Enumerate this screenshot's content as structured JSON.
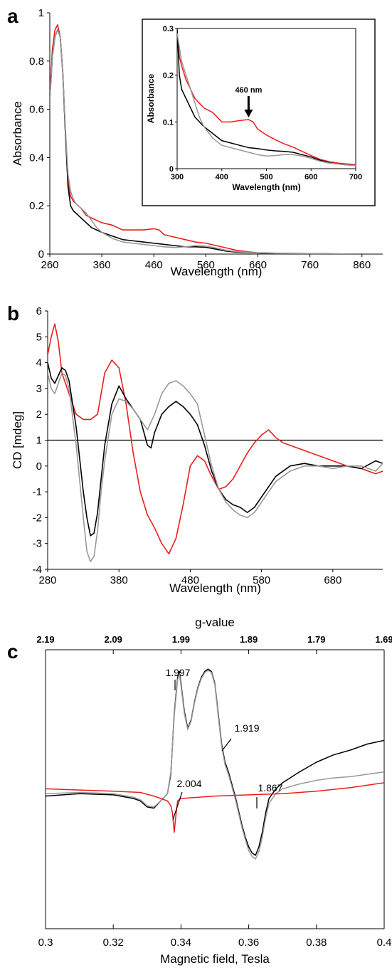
{
  "colors": {
    "red": "#ee1c1c",
    "black": "#000000",
    "gray": "#999999"
  },
  "chart_data": [
    {
      "panel": "a",
      "type": "line",
      "xlabel": "Wavelength (nm)",
      "ylabel": "Absorbance",
      "xlim": [
        260,
        900
      ],
      "ylim": [
        0,
        1
      ],
      "xticks": [
        260,
        360,
        460,
        560,
        660,
        760,
        860
      ],
      "yticks": [
        0,
        0.2,
        0.4,
        0.6,
        0.8,
        1
      ],
      "series": [
        {
          "color": "red",
          "x": [
            260,
            265,
            270,
            275,
            280,
            285,
            290,
            295,
            300,
            305,
            310,
            320,
            330,
            340,
            350,
            360,
            380,
            400,
            420,
            440,
            460,
            470,
            480,
            500,
            520,
            540,
            560,
            580,
            600,
            620,
            640,
            660,
            700,
            760,
            800,
            860,
            900
          ],
          "y": [
            0.66,
            0.85,
            0.93,
            0.95,
            0.9,
            0.75,
            0.5,
            0.3,
            0.24,
            0.22,
            0.21,
            0.19,
            0.16,
            0.15,
            0.14,
            0.13,
            0.12,
            0.1,
            0.1,
            0.1,
            0.105,
            0.1,
            0.08,
            0.07,
            0.06,
            0.05,
            0.045,
            0.035,
            0.025,
            0.015,
            0.01,
            0.005,
            0.003,
            0.002,
            0.001,
            0,
            0
          ]
        },
        {
          "color": "black",
          "x": [
            260,
            265,
            270,
            275,
            280,
            285,
            290,
            295,
            300,
            305,
            310,
            320,
            330,
            340,
            350,
            360,
            380,
            400,
            420,
            440,
            460,
            480,
            500,
            520,
            540,
            560,
            580,
            600,
            620,
            660,
            700,
            760,
            800,
            860,
            900
          ],
          "y": [
            0.64,
            0.82,
            0.9,
            0.93,
            0.9,
            0.75,
            0.5,
            0.28,
            0.2,
            0.18,
            0.17,
            0.15,
            0.13,
            0.11,
            0.1,
            0.09,
            0.075,
            0.06,
            0.055,
            0.05,
            0.045,
            0.04,
            0.035,
            0.03,
            0.03,
            0.028,
            0.02,
            0.012,
            0.008,
            0.005,
            0.003,
            0.002,
            0.001,
            0,
            0
          ]
        },
        {
          "color": "gray",
          "x": [
            260,
            265,
            270,
            275,
            280,
            285,
            290,
            295,
            300,
            305,
            310,
            320,
            330,
            340,
            350,
            360,
            380,
            400,
            420,
            440,
            460,
            480,
            500,
            520,
            540,
            560,
            580,
            600,
            620,
            660,
            700,
            760,
            800,
            860,
            900
          ],
          "y": [
            0.64,
            0.82,
            0.9,
            0.93,
            0.9,
            0.75,
            0.52,
            0.33,
            0.26,
            0.23,
            0.21,
            0.19,
            0.17,
            0.14,
            0.11,
            0.09,
            0.065,
            0.05,
            0.045,
            0.04,
            0.035,
            0.03,
            0.027,
            0.03,
            0.035,
            0.033,
            0.025,
            0.015,
            0.01,
            0.005,
            0.003,
            0.002,
            0.001,
            0,
            0
          ]
        }
      ],
      "inset": {
        "xlabel": "Wavelength (nm)",
        "ylabel": "Absorbance",
        "xlim": [
          300,
          700
        ],
        "ylim": [
          0,
          0.3
        ],
        "xticks": [
          300,
          400,
          500,
          600,
          700
        ],
        "yticks": [
          0,
          0.1,
          0.2,
          0.3
        ],
        "annotation": {
          "text": "460 nm",
          "x": 460,
          "y": 0.105
        },
        "series": [
          {
            "color": "red",
            "x": [
              300,
              305,
              310,
              320,
              330,
              340,
              350,
              360,
              380,
              400,
              420,
              440,
              460,
              470,
              480,
              500,
              520,
              540,
              560,
              580,
              600,
              620,
              640,
              660,
              680,
              700
            ],
            "y": [
              0.29,
              0.24,
              0.22,
              0.19,
              0.17,
              0.15,
              0.14,
              0.13,
              0.12,
              0.1,
              0.1,
              0.103,
              0.105,
              0.1,
              0.085,
              0.072,
              0.062,
              0.053,
              0.046,
              0.037,
              0.028,
              0.02,
              0.015,
              0.012,
              0.01,
              0.009
            ]
          },
          {
            "color": "black",
            "x": [
              300,
              305,
              310,
              320,
              330,
              340,
              350,
              360,
              380,
              400,
              420,
              440,
              460,
              480,
              500,
              520,
              540,
              560,
              580,
              600,
              620,
              640,
              660,
              680,
              700
            ],
            "y": [
              0.3,
              0.2,
              0.17,
              0.15,
              0.13,
              0.11,
              0.1,
              0.09,
              0.075,
              0.06,
              0.055,
              0.05,
              0.045,
              0.043,
              0.04,
              0.038,
              0.037,
              0.035,
              0.03,
              0.025,
              0.018,
              0.013,
              0.01,
              0.008,
              0.007
            ]
          },
          {
            "color": "gray",
            "x": [
              300,
              305,
              310,
              320,
              330,
              340,
              350,
              360,
              380,
              400,
              420,
              440,
              460,
              480,
              500,
              520,
              540,
              560,
              580,
              600,
              620,
              640,
              660,
              680,
              700
            ],
            "y": [
              0.29,
              0.26,
              0.23,
              0.2,
              0.17,
              0.14,
              0.11,
              0.09,
              0.065,
              0.05,
              0.045,
              0.04,
              0.035,
              0.03,
              0.027,
              0.028,
              0.03,
              0.03,
              0.027,
              0.022,
              0.016,
              0.012,
              0.01,
              0.008,
              0.007
            ]
          }
        ]
      }
    },
    {
      "panel": "b",
      "type": "line",
      "xlabel": "Wavelength (nm)",
      "ylabel": "CD [mdeg]",
      "xlim": [
        280,
        750
      ],
      "ylim": [
        -4,
        6
      ],
      "xticks": [
        280,
        380,
        480,
        580,
        680
      ],
      "yticks": [
        -4,
        -3,
        -2,
        -1,
        0,
        1,
        2,
        3,
        4,
        5,
        6
      ],
      "reference_line": 1,
      "series": [
        {
          "color": "red",
          "x": [
            280,
            285,
            290,
            295,
            300,
            310,
            320,
            330,
            340,
            350,
            360,
            370,
            380,
            390,
            400,
            410,
            420,
            430,
            440,
            450,
            460,
            470,
            480,
            490,
            500,
            510,
            520,
            530,
            540,
            550,
            560,
            570,
            580,
            590,
            600,
            610,
            620,
            640,
            660,
            680,
            700,
            720,
            740,
            750
          ],
          "y": [
            4.3,
            5.0,
            5.5,
            4.8,
            3.6,
            2.8,
            2.0,
            1.8,
            1.8,
            2.0,
            3.6,
            4.1,
            3.8,
            2.4,
            0.5,
            -1.0,
            -1.9,
            -2.4,
            -3.0,
            -3.4,
            -2.8,
            -1.5,
            0.0,
            0.4,
            0.2,
            -0.4,
            -0.9,
            -0.8,
            -0.5,
            0.0,
            0.5,
            0.9,
            1.2,
            1.4,
            1.1,
            0.9,
            0.8,
            0.6,
            0.4,
            0.2,
            0.0,
            -0.1,
            -0.3,
            -0.2
          ]
        },
        {
          "color": "black",
          "x": [
            280,
            285,
            290,
            295,
            300,
            305,
            310,
            320,
            330,
            335,
            340,
            345,
            350,
            355,
            360,
            370,
            380,
            390,
            400,
            410,
            420,
            425,
            430,
            440,
            450,
            460,
            470,
            480,
            490,
            500,
            510,
            520,
            530,
            540,
            550,
            560,
            570,
            580,
            590,
            600,
            620,
            640,
            660,
            680,
            700,
            720,
            740,
            750
          ],
          "y": [
            4.0,
            3.4,
            3.2,
            3.5,
            3.8,
            3.7,
            3.3,
            1.5,
            -1.0,
            -2.0,
            -2.7,
            -2.6,
            -1.8,
            -0.5,
            0.8,
            2.4,
            3.1,
            2.6,
            2.2,
            1.8,
            0.8,
            0.7,
            1.3,
            2.0,
            2.3,
            2.5,
            2.3,
            2.0,
            1.6,
            0.8,
            -0.2,
            -0.9,
            -1.3,
            -1.5,
            -1.6,
            -1.8,
            -1.6,
            -1.2,
            -0.8,
            -0.4,
            0.0,
            0.1,
            0.0,
            0.0,
            0.0,
            -0.1,
            0.2,
            0.1
          ]
        },
        {
          "color": "gray",
          "x": [
            280,
            285,
            290,
            295,
            300,
            305,
            310,
            320,
            330,
            335,
            340,
            345,
            350,
            355,
            360,
            370,
            380,
            390,
            400,
            410,
            420,
            430,
            440,
            450,
            460,
            470,
            480,
            490,
            500,
            510,
            520,
            530,
            540,
            550,
            560,
            570,
            580,
            590,
            600,
            620,
            640,
            660,
            680,
            700,
            720,
            740,
            750
          ],
          "y": [
            3.6,
            3.0,
            2.8,
            3.2,
            3.6,
            3.5,
            3.0,
            0.8,
            -2.0,
            -3.3,
            -3.7,
            -3.5,
            -2.5,
            -1.0,
            0.2,
            2.0,
            2.6,
            2.5,
            2.2,
            1.8,
            1.4,
            2.0,
            2.8,
            3.2,
            3.3,
            3.1,
            2.8,
            2.4,
            1.2,
            0.0,
            -0.9,
            -1.4,
            -1.7,
            -1.9,
            -2.0,
            -1.8,
            -1.4,
            -1.0,
            -0.6,
            -0.2,
            0.0,
            0.0,
            -0.1,
            0.0,
            0.0,
            -0.2,
            0.1
          ]
        }
      ]
    },
    {
      "panel": "c",
      "type": "line",
      "xlabel": "Magnetic field, Tesla",
      "top_axis_label": "g-value",
      "xlim": [
        0.3,
        0.4
      ],
      "xticks": [
        0.3,
        0.32,
        0.34,
        0.36,
        0.38,
        0.4
      ],
      "xtick_labels": [
        "0.3",
        "0.32",
        "0.34",
        "0.36",
        "0.38",
        "0.4"
      ],
      "top_tick_labels": [
        "2.19",
        "2.09",
        "1.99",
        "1.89",
        "1.79",
        "1.69"
      ],
      "ylim": [
        -1,
        1
      ],
      "annotations": [
        "1.997",
        "1.919",
        "2.004",
        "1.867"
      ],
      "series": [
        {
          "color": "red",
          "x": [
            0.3,
            0.31,
            0.32,
            0.328,
            0.332,
            0.334,
            0.336,
            0.337,
            0.3375,
            0.338,
            0.3385,
            0.339,
            0.34,
            0.35,
            0.36,
            0.37,
            0.38,
            0.39,
            0.4
          ],
          "y": [
            -0.02,
            -0.03,
            -0.04,
            -0.05,
            -0.08,
            -0.1,
            -0.12,
            -0.16,
            -0.22,
            -0.38,
            -0.24,
            -0.12,
            -0.1,
            -0.08,
            -0.07,
            -0.06,
            -0.04,
            -0.01,
            0.03
          ]
        },
        {
          "color": "black",
          "x": [
            0.3,
            0.31,
            0.32,
            0.326,
            0.328,
            0.33,
            0.332,
            0.334,
            0.336,
            0.337,
            0.338,
            0.339,
            0.3395,
            0.34,
            0.341,
            0.342,
            0.343,
            0.344,
            0.345,
            0.346,
            0.347,
            0.348,
            0.349,
            0.35,
            0.351,
            0.352,
            0.353,
            0.354,
            0.355,
            0.356,
            0.357,
            0.358,
            0.359,
            0.36,
            0.361,
            0.362,
            0.363,
            0.364,
            0.365,
            0.366,
            0.368,
            0.37,
            0.375,
            0.38,
            0.385,
            0.39,
            0.395,
            0.4
          ],
          "y": [
            -0.08,
            -0.06,
            -0.07,
            -0.1,
            -0.12,
            -0.17,
            -0.18,
            -0.12,
            -0.06,
            0.1,
            0.6,
            0.9,
            0.95,
            0.85,
            0.62,
            0.48,
            0.55,
            0.7,
            0.82,
            0.9,
            0.95,
            0.97,
            0.95,
            0.85,
            0.6,
            0.35,
            0.2,
            0.12,
            0.02,
            -0.08,
            -0.2,
            -0.32,
            -0.42,
            -0.5,
            -0.55,
            -0.57,
            -0.5,
            -0.38,
            -0.22,
            -0.1,
            -0.02,
            0.03,
            0.12,
            0.2,
            0.26,
            0.3,
            0.35,
            0.38
          ]
        },
        {
          "color": "gray",
          "x": [
            0.3,
            0.31,
            0.32,
            0.326,
            0.328,
            0.33,
            0.332,
            0.334,
            0.336,
            0.337,
            0.338,
            0.339,
            0.3395,
            0.34,
            0.341,
            0.342,
            0.343,
            0.344,
            0.345,
            0.346,
            0.347,
            0.348,
            0.349,
            0.35,
            0.351,
            0.352,
            0.353,
            0.354,
            0.355,
            0.356,
            0.357,
            0.358,
            0.359,
            0.36,
            0.361,
            0.362,
            0.363,
            0.364,
            0.365,
            0.366,
            0.368,
            0.37,
            0.375,
            0.38,
            0.385,
            0.39,
            0.395,
            0.4
          ],
          "y": [
            -0.06,
            -0.05,
            -0.06,
            -0.09,
            -0.11,
            -0.16,
            -0.17,
            -0.12,
            -0.06,
            0.12,
            0.58,
            0.88,
            0.93,
            0.83,
            0.6,
            0.47,
            0.54,
            0.69,
            0.81,
            0.89,
            0.94,
            0.96,
            0.94,
            0.84,
            0.58,
            0.33,
            0.18,
            0.1,
            0.0,
            -0.1,
            -0.22,
            -0.34,
            -0.44,
            -0.53,
            -0.58,
            -0.6,
            -0.54,
            -0.42,
            -0.26,
            -0.14,
            -0.06,
            -0.02,
            0.02,
            0.05,
            0.07,
            0.08,
            0.1,
            0.12
          ]
        }
      ]
    }
  ]
}
